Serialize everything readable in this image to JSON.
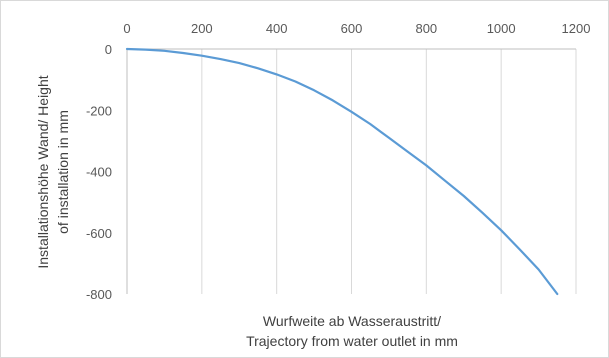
{
  "chart_data": {
    "type": "line",
    "title": "",
    "xlabel_lines": [
      "Wurfweite  ab Wasseraustritt/",
      "Trajectory from water outlet in mm"
    ],
    "ylabel_lines": [
      "Installationshöhe  Wand/  Height",
      "of installation  in mm"
    ],
    "xlim": [
      0,
      1200
    ],
    "ylim": [
      -800,
      0
    ],
    "xticks": [
      0,
      200,
      400,
      600,
      800,
      1000,
      1200
    ],
    "yticks": [
      0,
      -200,
      -400,
      -600,
      -800
    ],
    "xtick_labels": [
      "0",
      "200",
      "400",
      "600",
      "800",
      "1000",
      "1200"
    ],
    "ytick_labels": [
      "0",
      "-200",
      "-400",
      "-600",
      "-800"
    ],
    "x_axis_position": "top",
    "grid": "vertical",
    "colors": {
      "line": "#5b9bd5",
      "grid": "#d9d9d9",
      "axis": "#bfbfbf"
    },
    "series": [
      {
        "x": [
          0,
          50,
          100,
          150,
          200,
          250,
          300,
          350,
          400,
          450,
          500,
          550,
          600,
          650,
          700,
          750,
          800,
          850,
          900,
          950,
          1000,
          1050,
          1100,
          1150
        ],
        "y": [
          0,
          -2,
          -6,
          -13,
          -22,
          -33,
          -46,
          -63,
          -83,
          -106,
          -135,
          -168,
          -205,
          -245,
          -290,
          -335,
          -380,
          -430,
          -480,
          -535,
          -592,
          -655,
          -720,
          -800
        ]
      }
    ]
  }
}
